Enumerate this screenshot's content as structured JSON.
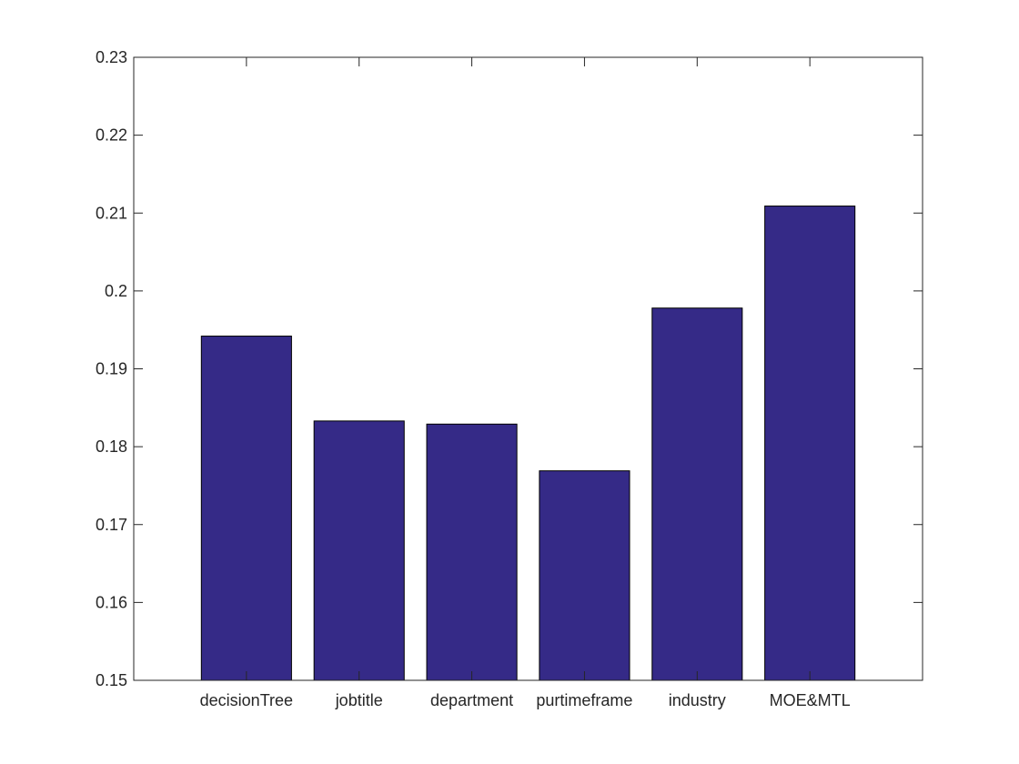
{
  "chart_data": {
    "type": "bar",
    "title": "",
    "xlabel": "",
    "ylabel": "",
    "categories": [
      "decisionTree",
      "jobtitle",
      "department",
      "purtimeframe",
      "industry",
      "MOE&MTL"
    ],
    "values": [
      0.1942,
      0.1833,
      0.1829,
      0.1769,
      0.1978,
      0.2109
    ],
    "ylim": [
      0.15,
      0.23
    ],
    "yticks": [
      0.15,
      0.16,
      0.17,
      0.18,
      0.19,
      0.2,
      0.21,
      0.22,
      0.23
    ],
    "ytick_labels": [
      "0.15",
      "0.16",
      "0.17",
      "0.18",
      "0.19",
      "0.2",
      "0.21",
      "0.22",
      "0.23"
    ],
    "grid": false,
    "legend": "none",
    "colors": {
      "bar_fill": "#352a87",
      "bar_edge": "#000000",
      "axis": "#262626",
      "background": "#ffffff"
    }
  }
}
